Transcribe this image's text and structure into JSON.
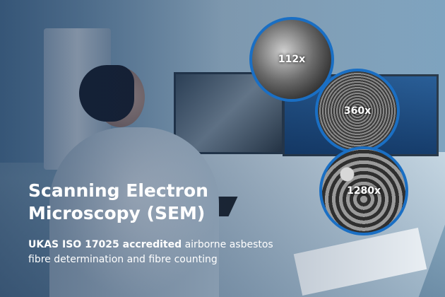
{
  "heading": {
    "line1": "Scanning Electron",
    "line2": "Microscopy (SEM)"
  },
  "subtitle": {
    "bold": "UKAS ISO 17025 accredited",
    "normal_1": " airborne asbestos",
    "normal_2": "fibre determination and fibre counting"
  },
  "magnifications": [
    {
      "label": "112x"
    },
    {
      "label": "360x"
    },
    {
      "label": "1280x"
    }
  ],
  "colors": {
    "circle_border": "#1a6fc4",
    "text": "#ffffff"
  }
}
